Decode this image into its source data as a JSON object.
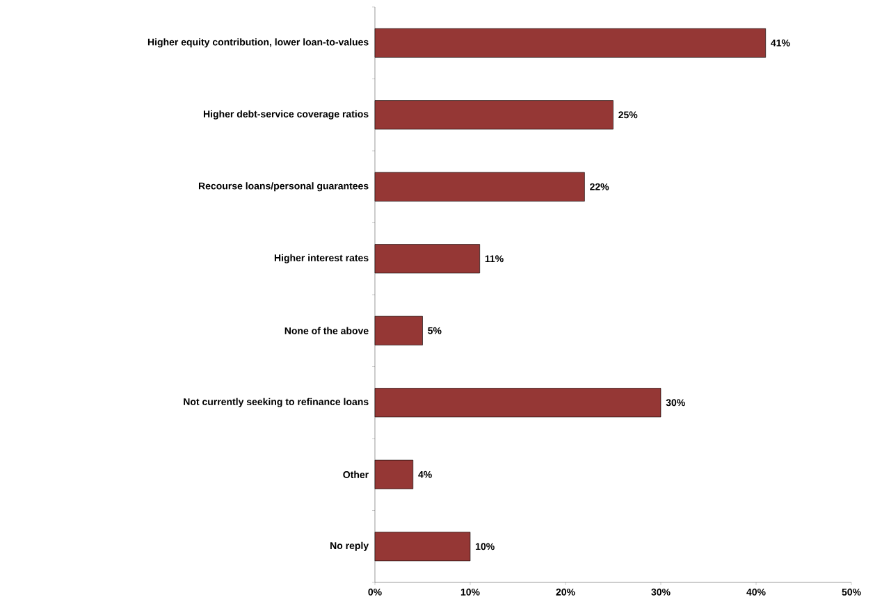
{
  "chart_data": {
    "type": "bar",
    "orientation": "horizontal",
    "categories": [
      "Higher equity contribution, lower loan-to-values",
      "Higher debt-service coverage ratios",
      "Recourse loans/personal guarantees",
      "Higher interest rates",
      "None of the above",
      "Not currently seeking to refinance loans",
      "Other",
      "No reply"
    ],
    "values": [
      41,
      25,
      22,
      11,
      5,
      30,
      4,
      10
    ],
    "value_labels": [
      "41%",
      "25%",
      "22%",
      "11%",
      "5%",
      "30%",
      "4%",
      "10%"
    ],
    "color": "#953735",
    "xlim": [
      0,
      50
    ],
    "xticks": [
      {
        "value": 0,
        "label": "0%"
      },
      {
        "value": 10,
        "label": "10%"
      },
      {
        "value": 20,
        "label": "20%"
      },
      {
        "value": 30,
        "label": "30%"
      },
      {
        "value": 40,
        "label": "40%"
      },
      {
        "value": 50,
        "label": "50%"
      }
    ]
  }
}
